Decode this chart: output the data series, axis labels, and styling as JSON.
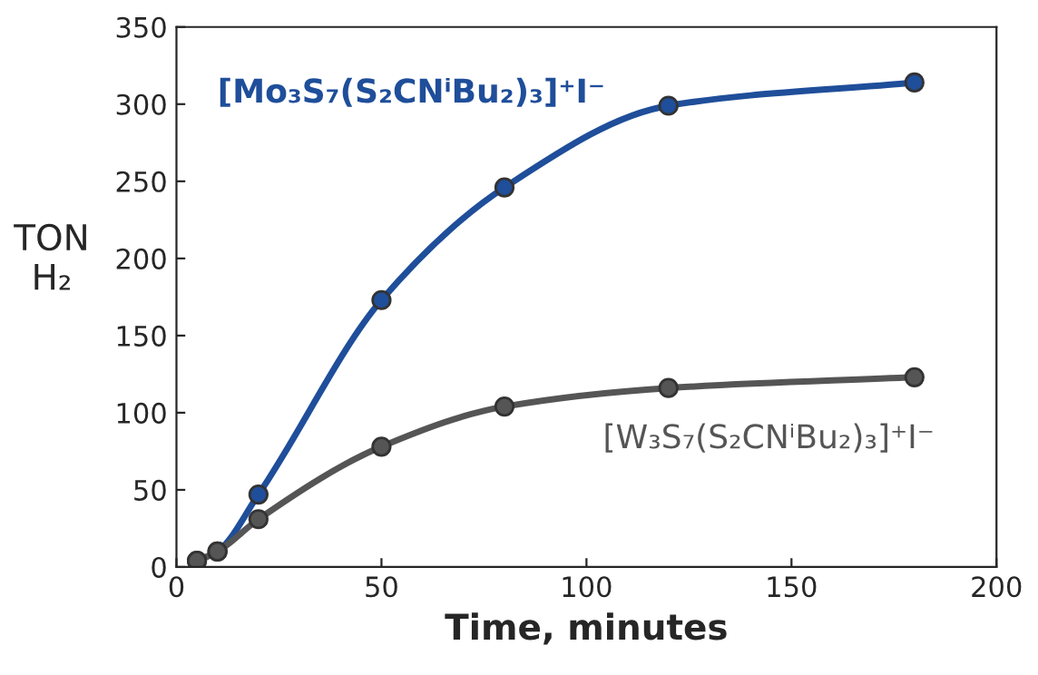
{
  "chart_data": {
    "type": "line",
    "xlabel": "Time, minutes",
    "ylabel": "TON\nH₂",
    "x": [
      5,
      10,
      20,
      50,
      80,
      120,
      180
    ],
    "series": [
      {
        "name": "[Mo₃S₇(S₂CNⁱBu₂)₃]⁺I⁻",
        "color": "#1f4e9a",
        "values": [
          4,
          10,
          47,
          173,
          246,
          299,
          314
        ]
      },
      {
        "name": "[W₃S₇(S₂CNⁱBu₂)₃]⁺I⁻",
        "color": "#555555",
        "values": [
          4,
          10,
          31,
          78,
          104,
          116,
          123
        ]
      }
    ],
    "xlim": [
      0,
      200
    ],
    "xticks": [
      0,
      50,
      100,
      150,
      200
    ],
    "ylim": [
      0,
      350
    ],
    "yticks": [
      0,
      50,
      100,
      150,
      200,
      250,
      300,
      350
    ],
    "marker": "circle",
    "line_style": "solid",
    "grid": false,
    "legend": false
  }
}
